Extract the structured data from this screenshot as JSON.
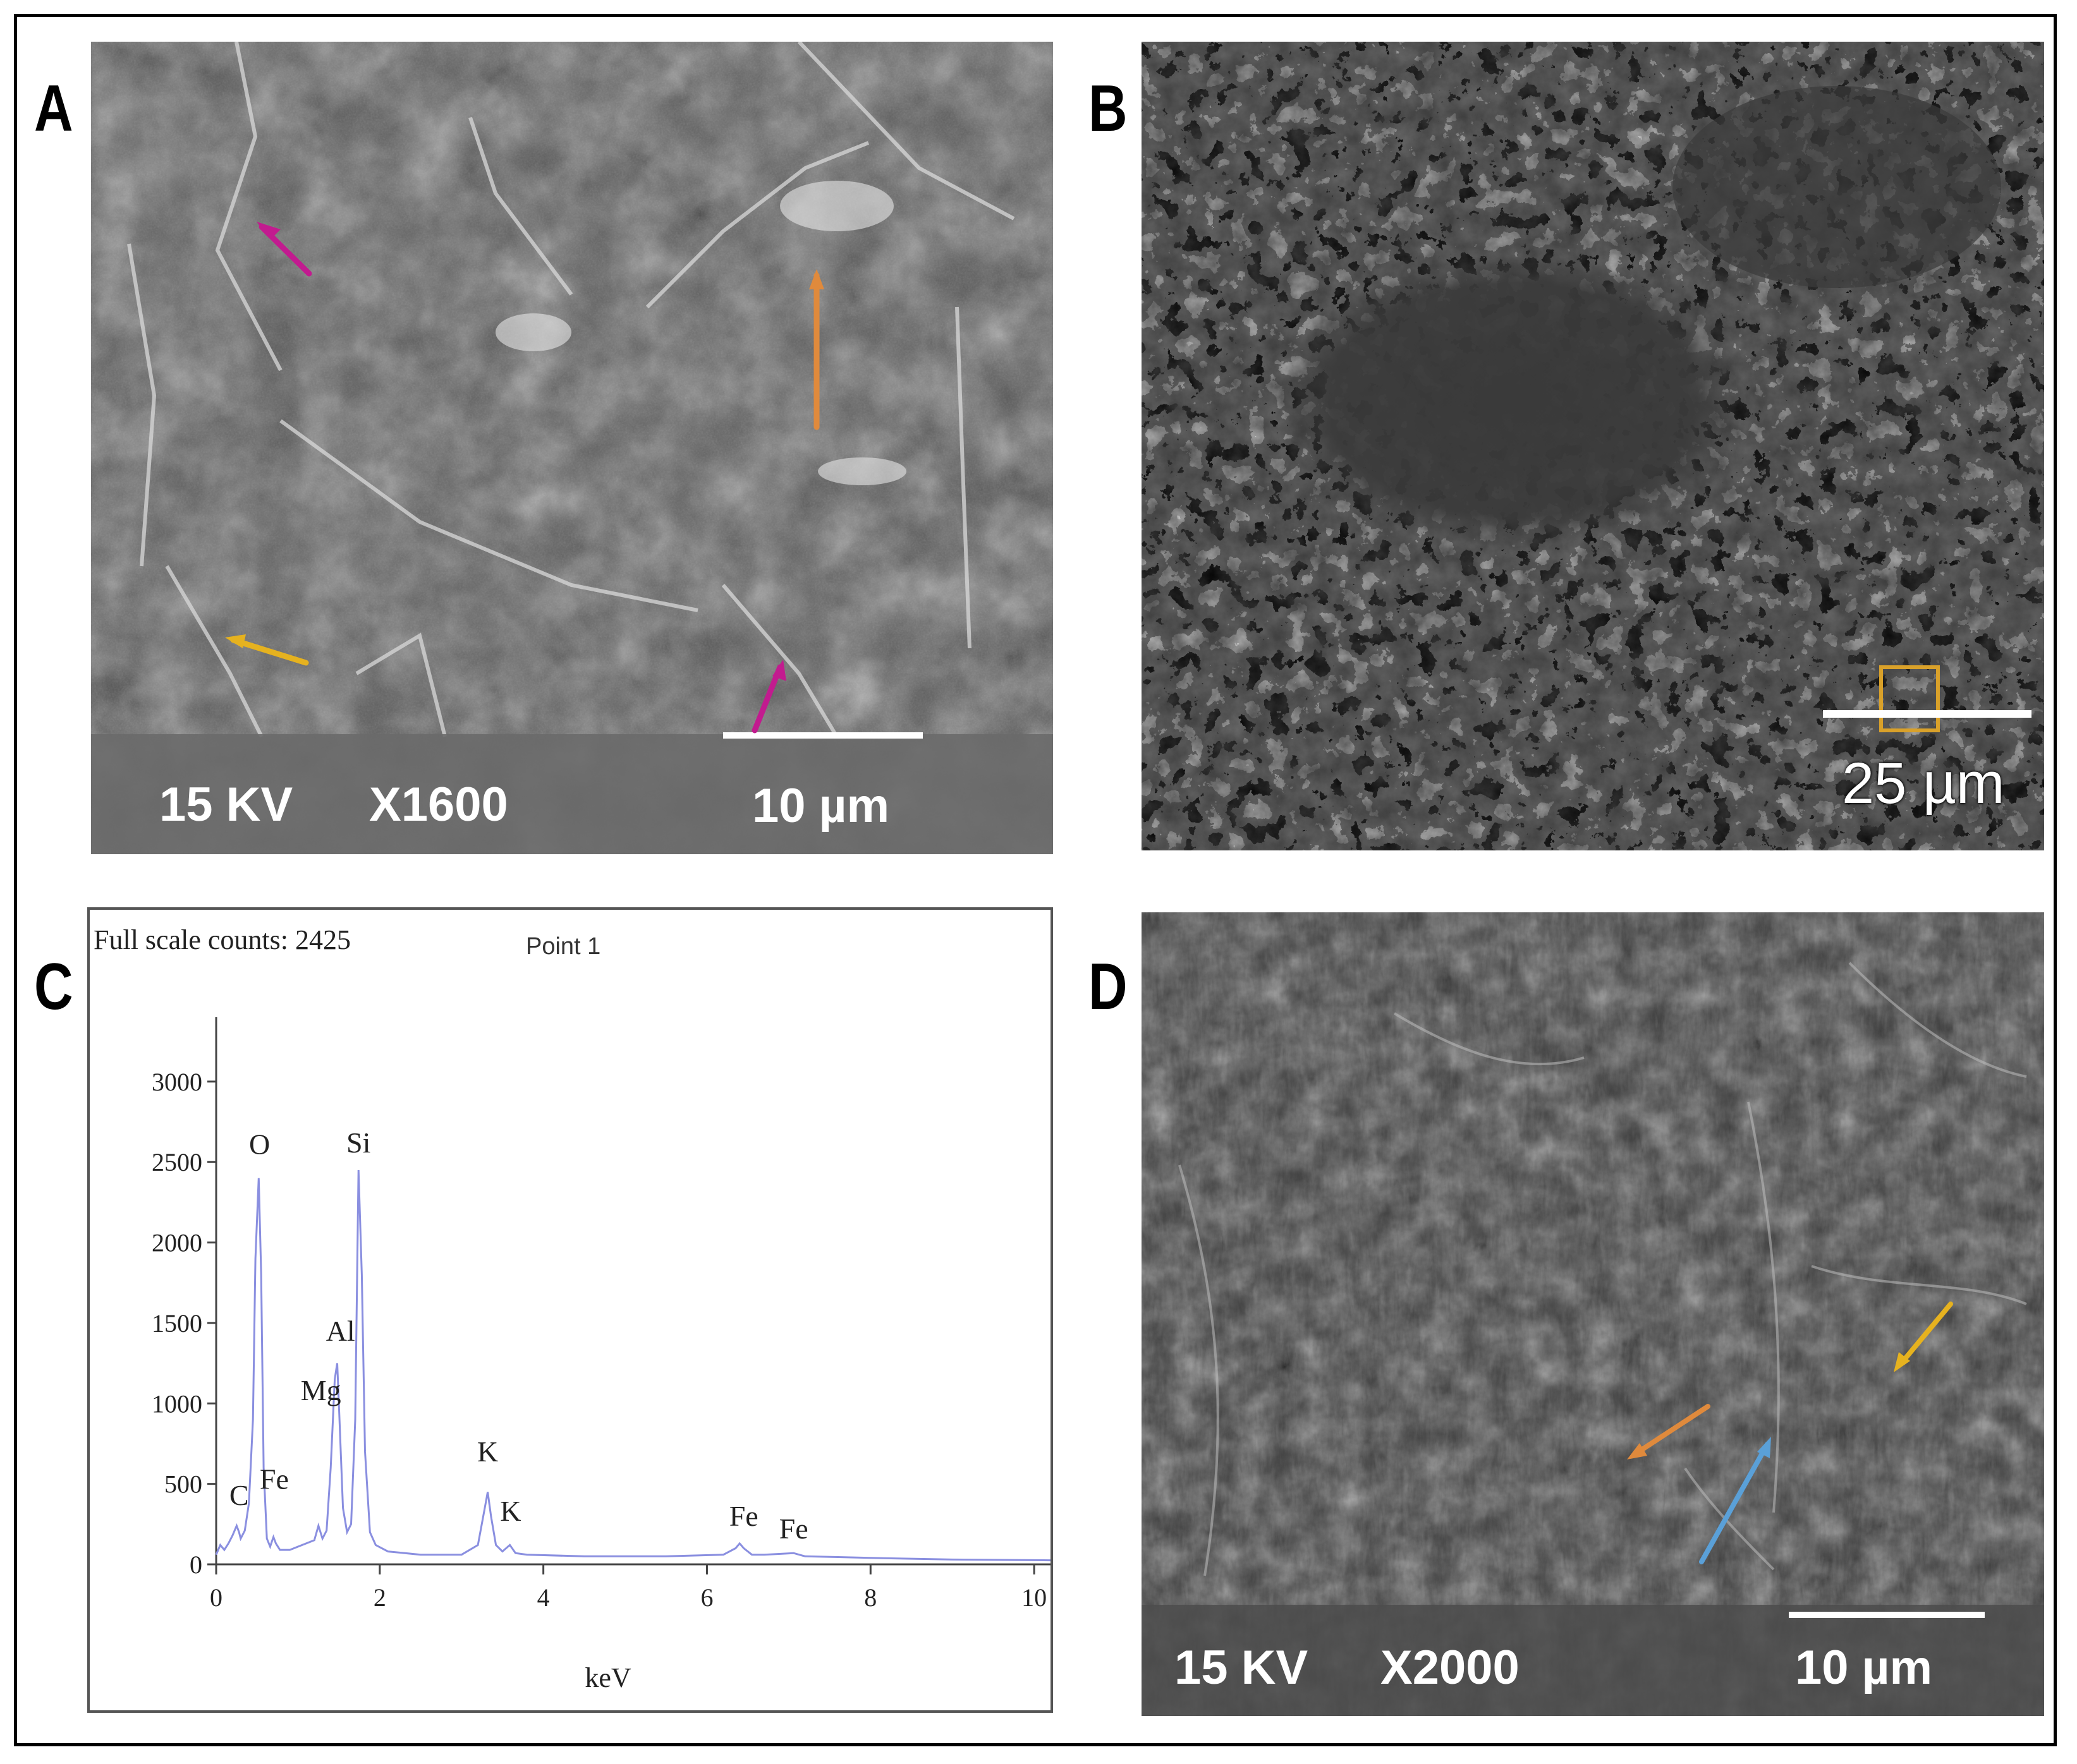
{
  "panels": {
    "a": {
      "label": "A",
      "kv": "15 KV",
      "mag": "X1600",
      "scale": "10 µm"
    },
    "b": {
      "label": "B",
      "scale": "25 µm"
    },
    "c": {
      "label": "C"
    },
    "d": {
      "label": "D",
      "kv": "15 KV",
      "mag": "X2000",
      "scale": "10 µm"
    }
  },
  "arrow_colors": {
    "magenta": "#c21b8f",
    "orange": "#e08a3c",
    "yellow": "#e6b21f",
    "blue": "#5aa0d8",
    "orange_box": "#d9a12a"
  },
  "chart_data": {
    "type": "line",
    "title": "Point 1",
    "header": "Full scale counts: 2425",
    "xlabel": "keV",
    "ylabel": "",
    "xlim": [
      0,
      10.2
    ],
    "ylim": [
      0,
      3400
    ],
    "xticks": [
      0,
      2,
      4,
      6,
      8,
      10
    ],
    "yticks": [
      0,
      500,
      1000,
      1500,
      2000,
      2500,
      3000
    ],
    "series": [
      {
        "color": "#8a8fe0",
        "x": [
          0,
          0.05,
          0.1,
          0.15,
          0.2,
          0.25,
          0.28,
          0.3,
          0.35,
          0.4,
          0.45,
          0.48,
          0.52,
          0.55,
          0.58,
          0.62,
          0.66,
          0.7,
          0.73,
          0.78,
          0.9,
          1.0,
          1.1,
          1.2,
          1.25,
          1.3,
          1.35,
          1.4,
          1.45,
          1.48,
          1.5,
          1.55,
          1.6,
          1.65,
          1.7,
          1.74,
          1.78,
          1.82,
          1.88,
          1.95,
          2.1,
          2.5,
          3.0,
          3.2,
          3.28,
          3.32,
          3.36,
          3.42,
          3.5,
          3.59,
          3.66,
          3.8,
          4.5,
          5.5,
          6.2,
          6.35,
          6.4,
          6.45,
          6.55,
          6.7,
          7.06,
          7.2,
          8.0,
          9.0,
          10.2
        ],
        "y": [
          60,
          120,
          90,
          130,
          180,
          240,
          200,
          160,
          210,
          380,
          900,
          1900,
          2400,
          1800,
          600,
          160,
          110,
          170,
          130,
          90,
          90,
          110,
          130,
          150,
          240,
          160,
          210,
          600,
          1150,
          1250,
          1000,
          350,
          200,
          250,
          900,
          2450,
          1800,
          700,
          200,
          120,
          80,
          60,
          60,
          120,
          340,
          450,
          300,
          120,
          80,
          120,
          70,
          60,
          50,
          50,
          60,
          100,
          130,
          100,
          60,
          60,
          70,
          50,
          40,
          30,
          25
        ]
      }
    ],
    "annotations": [
      {
        "text": "C",
        "x": 0.28,
        "y": 370
      },
      {
        "text": "O",
        "x": 0.53,
        "y": 2550
      },
      {
        "text": "Fe",
        "x": 0.71,
        "y": 470
      },
      {
        "text": "Mg",
        "x": 1.28,
        "y": 1020
      },
      {
        "text": "Al",
        "x": 1.52,
        "y": 1390
      },
      {
        "text": "Si",
        "x": 1.74,
        "y": 2560
      },
      {
        "text": "K",
        "x": 3.32,
        "y": 640
      },
      {
        "text": "K",
        "x": 3.6,
        "y": 270
      },
      {
        "text": "Fe",
        "x": 6.45,
        "y": 240
      },
      {
        "text": "Fe",
        "x": 7.06,
        "y": 160
      }
    ]
  }
}
